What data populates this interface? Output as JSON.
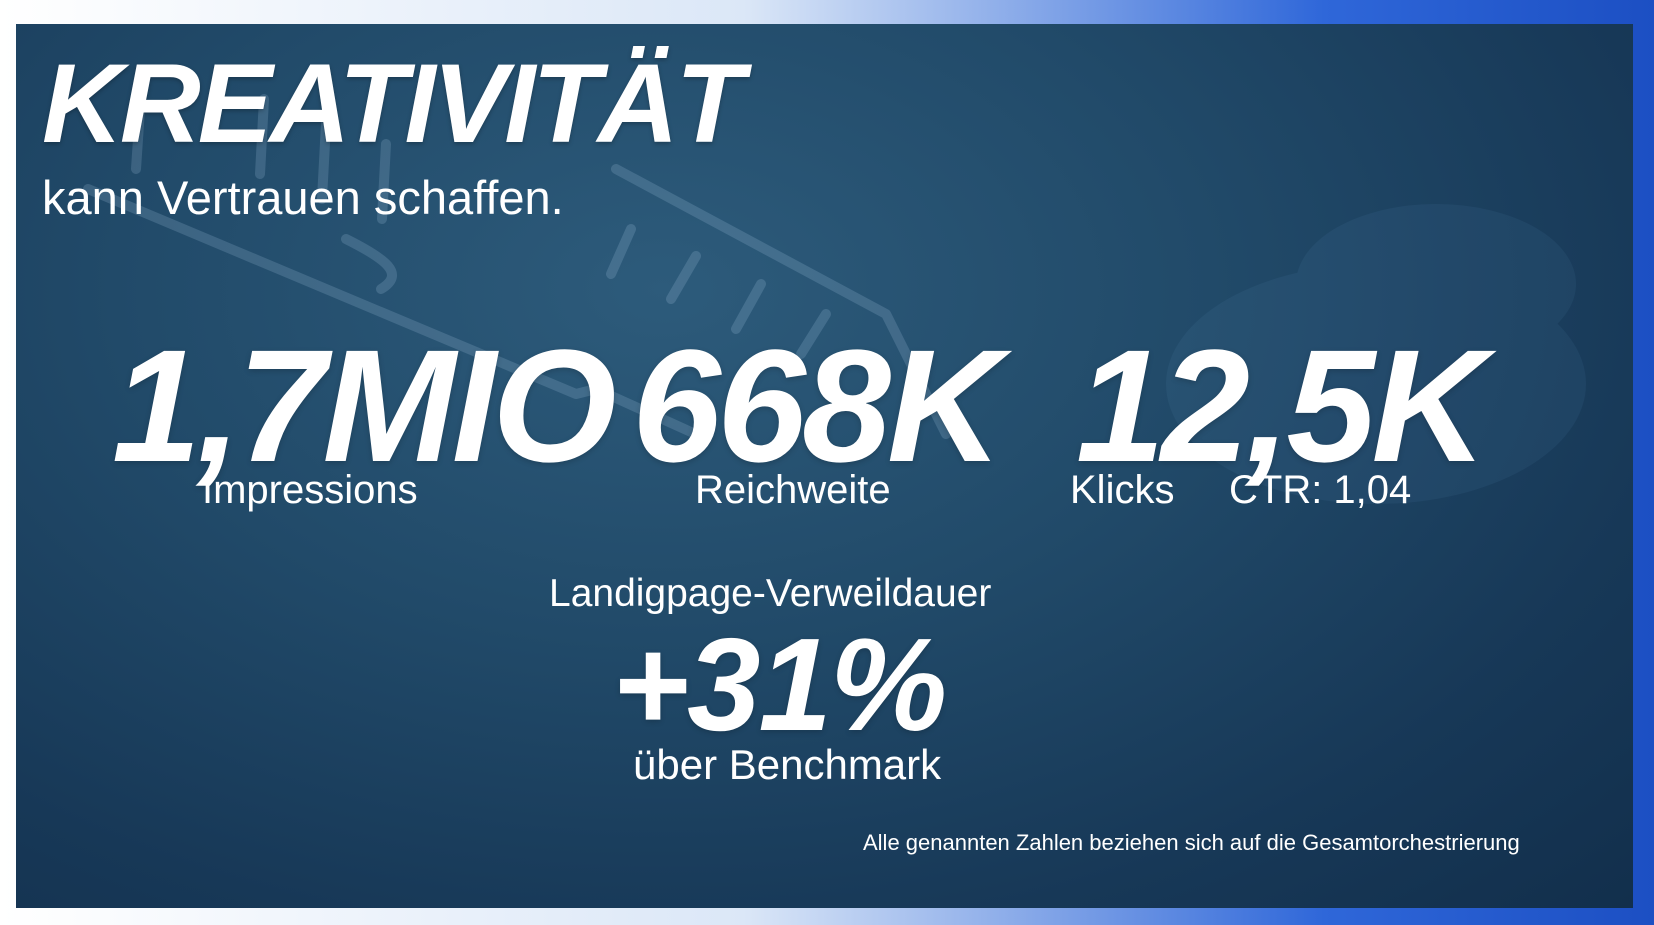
{
  "slide": {
    "title": "KREATIVITÄT",
    "subtitle": "kann Vertrauen schaffen."
  },
  "metrics": {
    "impressions": {
      "value": "1,7MIO",
      "label": "Impressions"
    },
    "reach": {
      "value": "668K",
      "label": "Reichweite"
    },
    "clicks": {
      "value": "12,5K",
      "label": "Klicks",
      "ctr": "CTR: 1,04"
    }
  },
  "landing_page": {
    "label": "Landigpage-Verweildauer",
    "value": "+31%",
    "comparison": "über Benchmark"
  },
  "footnote": "Alle genannten Zahlen beziehen sich auf die Gesamtorchestrierung",
  "colors": {
    "panel": "#214a69",
    "text": "#ffffff",
    "accent_blue": "#1c4fc3"
  }
}
